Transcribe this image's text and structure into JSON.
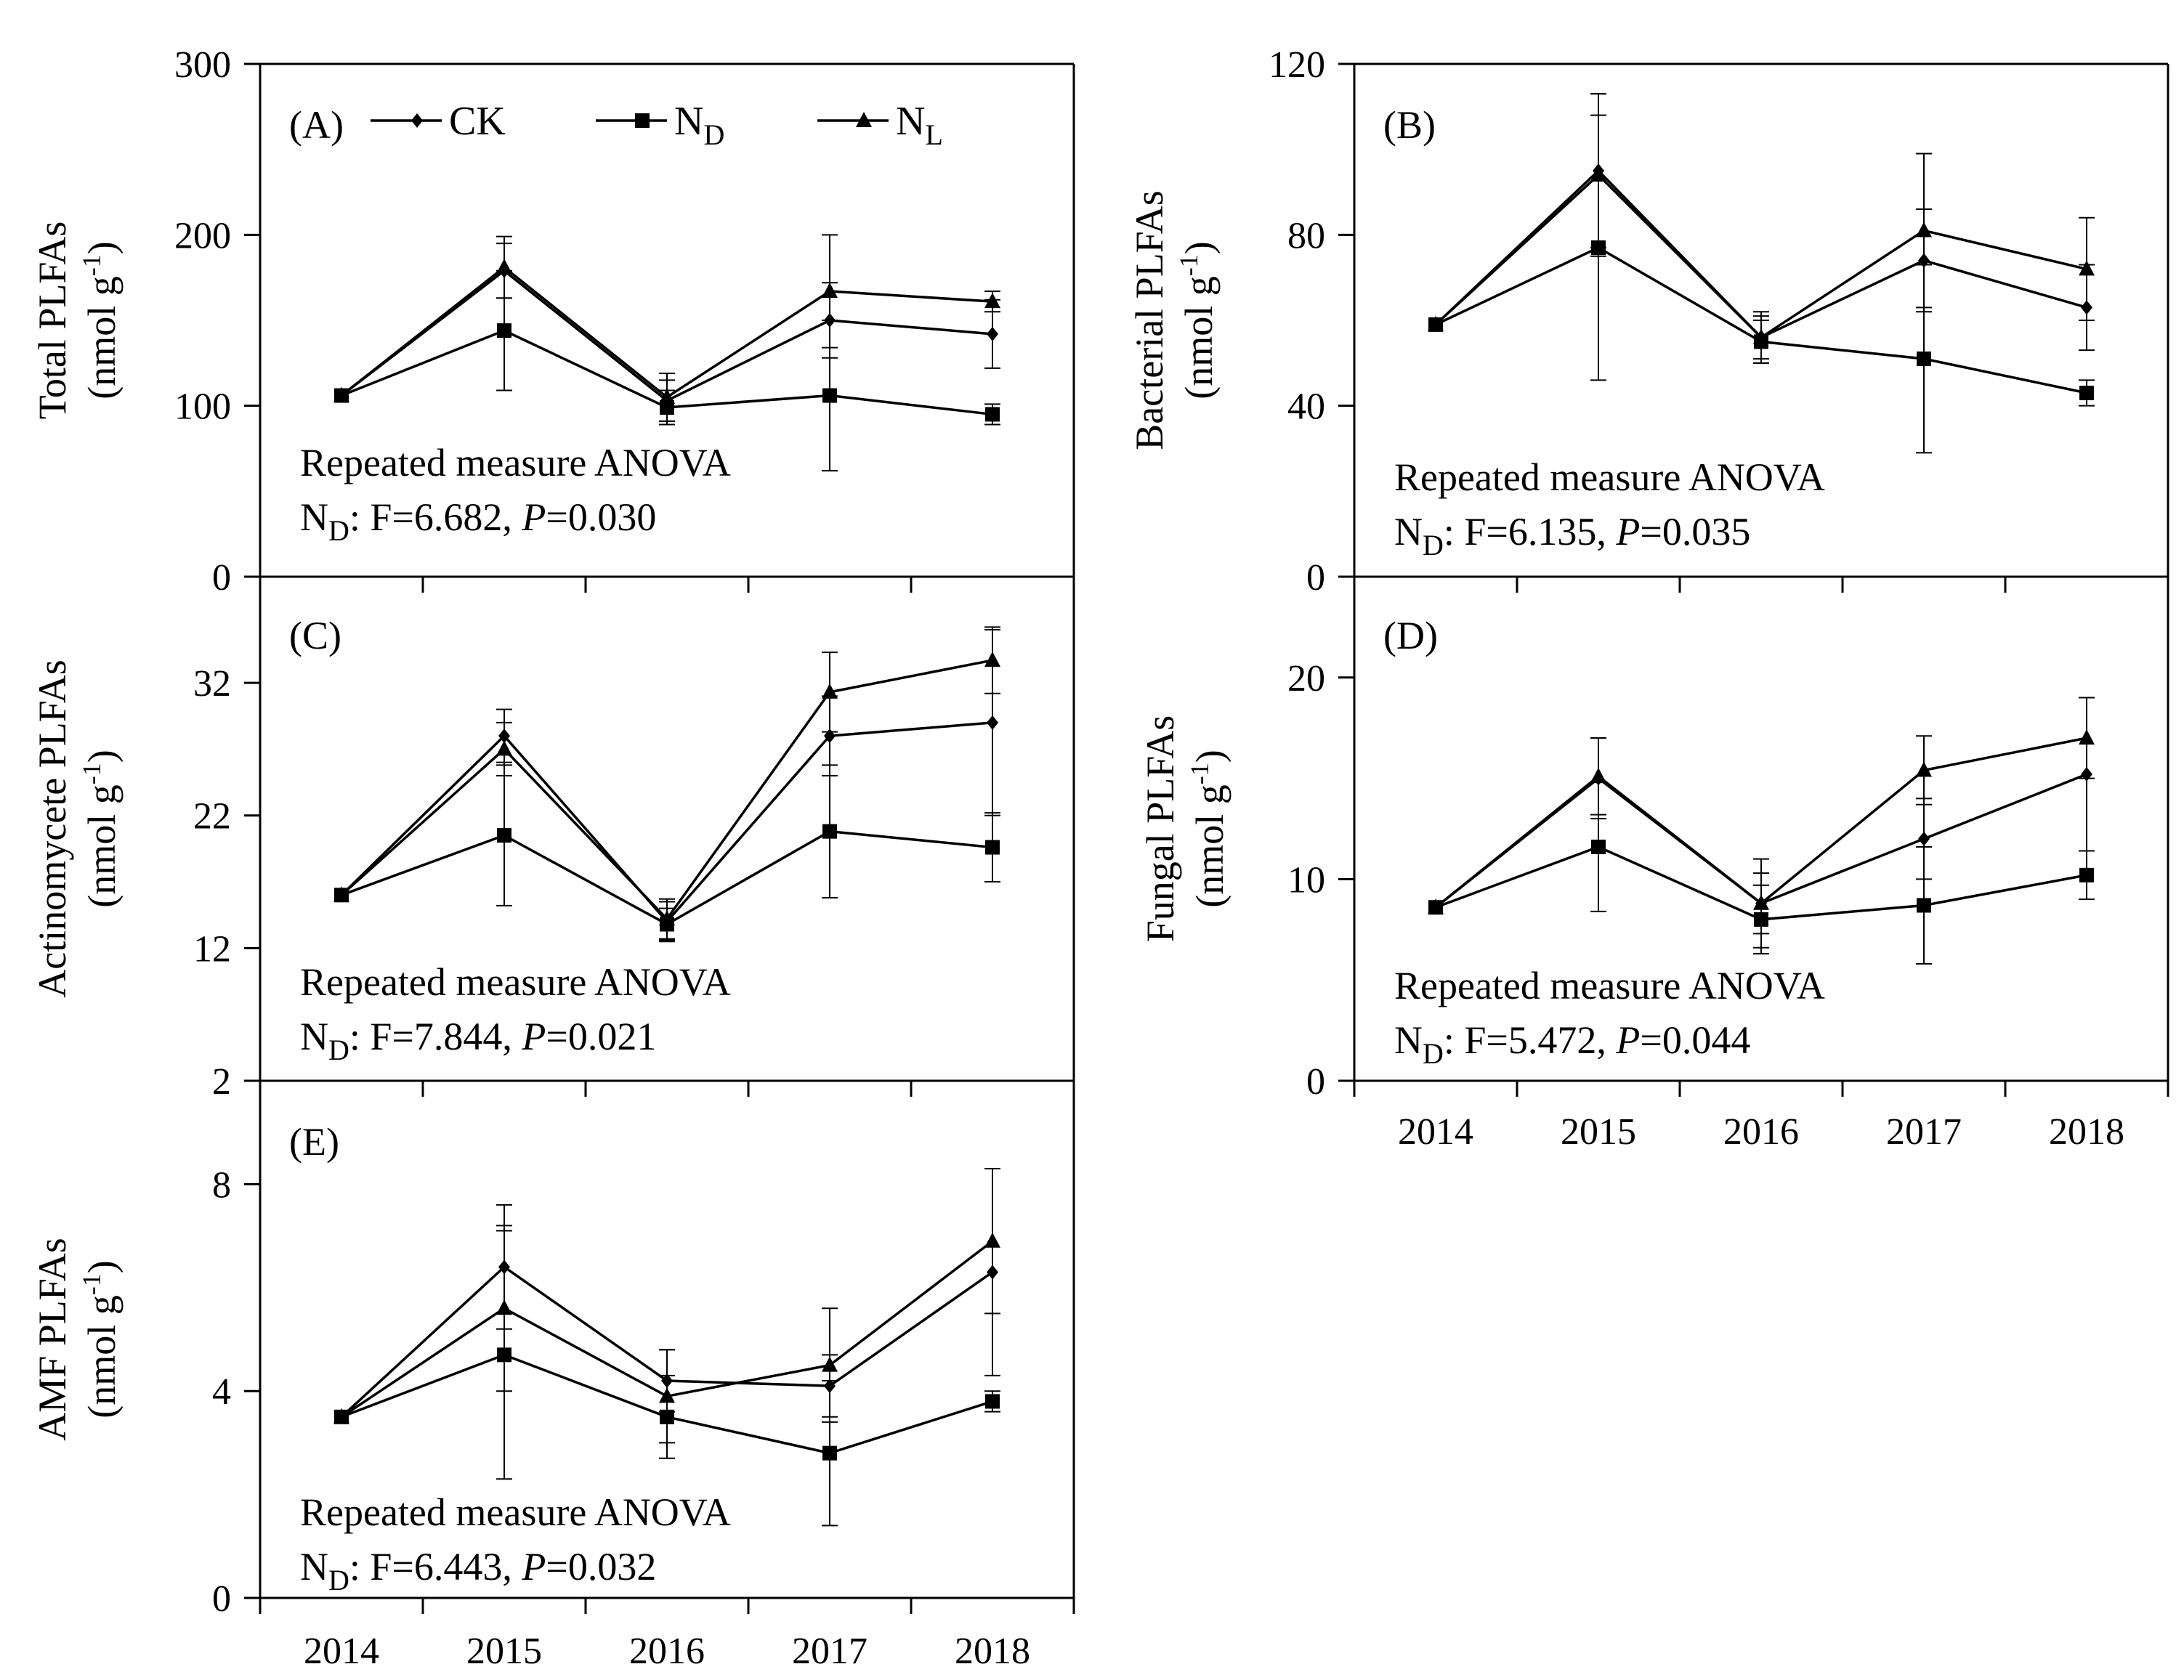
{
  "chart_data": [
    {
      "type": "line",
      "panel_label": "(A)",
      "ylabel_line1": "Total PLFAs",
      "ylabel_unit": "(nmol g-1)",
      "ylim": [
        0,
        300
      ],
      "yticks": [
        "0",
        "100",
        "200",
        "300"
      ],
      "x": [
        "2014",
        "2015",
        "2016",
        "2017",
        "2018"
      ],
      "xtick_labels_shown": false,
      "series": [
        {
          "name": "CK",
          "marker": "diamond",
          "values": [
            106,
            179,
            103,
            150,
            142
          ],
          "err": [
            0,
            16,
            12,
            22,
            20
          ]
        },
        {
          "name": "ND",
          "marker": "square",
          "values": [
            106,
            144,
            99,
            106,
            95
          ],
          "err": [
            0,
            35,
            10,
            44,
            6
          ]
        },
        {
          "name": "NL",
          "marker": "triangle",
          "values": [
            106,
            181,
            105,
            167,
            161
          ],
          "err": [
            0,
            18,
            14,
            33,
            6
          ]
        }
      ],
      "annotation_title": "Repeated measure ANOVA",
      "annotation_stat_prefix": "N",
      "annotation_stat_sub": "D",
      "annotation_stat_F": ": F=6.682, ",
      "annotation_stat_P": "P",
      "annotation_stat_Pval": "=0.030"
    },
    {
      "type": "line",
      "panel_label": "(B)",
      "ylabel_line1": "Bacterial PLFAs",
      "ylabel_unit": "(nmol g-1)",
      "ylim": [
        0,
        120
      ],
      "yticks": [
        "0",
        "40",
        "80",
        "120"
      ],
      "x": [
        "2014",
        "2015",
        "2016",
        "2017",
        "2018"
      ],
      "xtick_labels_shown": false,
      "series": [
        {
          "name": "CK",
          "marker": "diamond",
          "values": [
            59,
            95,
            56,
            74,
            63
          ],
          "err": [
            0,
            18,
            5,
            12,
            10
          ]
        },
        {
          "name": "ND",
          "marker": "square",
          "values": [
            59,
            77,
            55,
            51,
            43
          ],
          "err": [
            0,
            31,
            5,
            22,
            3
          ]
        },
        {
          "name": "NL",
          "marker": "triangle",
          "values": [
            59,
            94,
            56,
            81,
            72
          ],
          "err": [
            0,
            19,
            6,
            18,
            12
          ]
        }
      ],
      "annotation_title": "Repeated measure ANOVA",
      "annotation_stat_prefix": "N",
      "annotation_stat_sub": "D",
      "annotation_stat_F": ": F=6.135,  ",
      "annotation_stat_P": "P",
      "annotation_stat_Pval": "=0.035"
    },
    {
      "type": "line",
      "panel_label": "(C)",
      "ylabel_line1": "Actinomycete PLFAs",
      "ylabel_unit": "(nmol g-1)",
      "ylim": [
        2,
        40
      ],
      "yticks": [
        "2",
        "12",
        "22",
        "32"
      ],
      "x": [
        "2014",
        "2015",
        "2016",
        "2017",
        "2018"
      ],
      "xtick_labels_shown": false,
      "series": [
        {
          "name": "CK",
          "marker": "diamond",
          "values": [
            16,
            28,
            14,
            28,
            29
          ],
          "err": [
            0,
            2,
            1.5,
            3,
            7
          ]
        },
        {
          "name": "ND",
          "marker": "square",
          "values": [
            16,
            20.5,
            13.8,
            20.8,
            19.6
          ],
          "err": [
            0,
            5.3,
            1.2,
            5,
            2.6
          ]
        },
        {
          "name": "NL",
          "marker": "triangle",
          "values": [
            16,
            27,
            14.2,
            31.3,
            33.7
          ],
          "err": [
            0,
            2,
            1.5,
            3,
            2.5
          ]
        }
      ],
      "annotation_title": "Repeated measure ANOVA",
      "annotation_stat_prefix": "N",
      "annotation_stat_sub": "D",
      "annotation_stat_F": ": F=7.844,  ",
      "annotation_stat_P": "P",
      "annotation_stat_Pval": "=0.021"
    },
    {
      "type": "line",
      "panel_label": "(D)",
      "ylabel_line1": "Fungal PLFAs",
      "ylabel_unit": "(nmol g-1)",
      "ylim": [
        0,
        25
      ],
      "yticks": [
        "0",
        "10",
        "20"
      ],
      "x": [
        "2014",
        "2015",
        "2016",
        "2017",
        "2018"
      ],
      "xtick_labels_shown": true,
      "series": [
        {
          "name": "CK",
          "marker": "diamond",
          "values": [
            8.6,
            15,
            8.8,
            12,
            15.2
          ],
          "err": [
            0,
            2,
            1.5,
            2,
            3.8
          ]
        },
        {
          "name": "ND",
          "marker": "square",
          "values": [
            8.6,
            11.6,
            8,
            8.7,
            10.2
          ],
          "err": [
            0,
            3.2,
            1.7,
            2.9,
            1.2
          ]
        },
        {
          "name": "NL",
          "marker": "triangle",
          "values": [
            8.6,
            15.1,
            8.8,
            15.4,
            17
          ],
          "err": [
            0,
            1.9,
            2.2,
            1.7,
            2
          ]
        }
      ],
      "annotation_title": "Repeated measure ANOVA",
      "annotation_stat_prefix": "N",
      "annotation_stat_sub": "D",
      "annotation_stat_F": ": F=5.472,  ",
      "annotation_stat_P": "P",
      "annotation_stat_Pval": "=0.044"
    },
    {
      "type": "line",
      "panel_label": "(E)",
      "ylabel_line1": "AMF PLFAs",
      "ylabel_unit": "(nmol g-1)",
      "ylim": [
        0,
        10
      ],
      "yticks": [
        "0",
        "4",
        "8"
      ],
      "x": [
        "2014",
        "2015",
        "2016",
        "2017",
        "2018"
      ],
      "xtick_labels_shown": true,
      "series": [
        {
          "name": "CK",
          "marker": "diamond",
          "values": [
            3.5,
            6.4,
            4.2,
            4.1,
            6.3
          ],
          "err": [
            0,
            1.2,
            0.6,
            0.6,
            2
          ]
        },
        {
          "name": "ND",
          "marker": "square",
          "values": [
            3.5,
            4.7,
            3.5,
            2.8,
            3.8
          ],
          "err": [
            0,
            2.4,
            0.8,
            1.4,
            0.2
          ]
        },
        {
          "name": "NL",
          "marker": "triangle",
          "values": [
            3.5,
            5.6,
            3.9,
            4.5,
            6.9
          ],
          "err": [
            0,
            1.6,
            0.9,
            1.1,
            1.4
          ]
        }
      ],
      "annotation_title": "Repeated measure ANOVA",
      "annotation_stat_prefix": "N",
      "annotation_stat_sub": "D",
      "annotation_stat_F": ": F=6.443,  ",
      "annotation_stat_P": "P",
      "annotation_stat_Pval": "=0.032"
    }
  ],
  "legend": {
    "placement": "top-left of panel A",
    "items": [
      {
        "label": "CK",
        "sub": "",
        "marker": "diamond"
      },
      {
        "label": "N",
        "sub": "D",
        "marker": "square"
      },
      {
        "label": "N",
        "sub": "L",
        "marker": "triangle"
      }
    ]
  },
  "colors": {
    "line": "#000000",
    "background": "#ffffff"
  }
}
